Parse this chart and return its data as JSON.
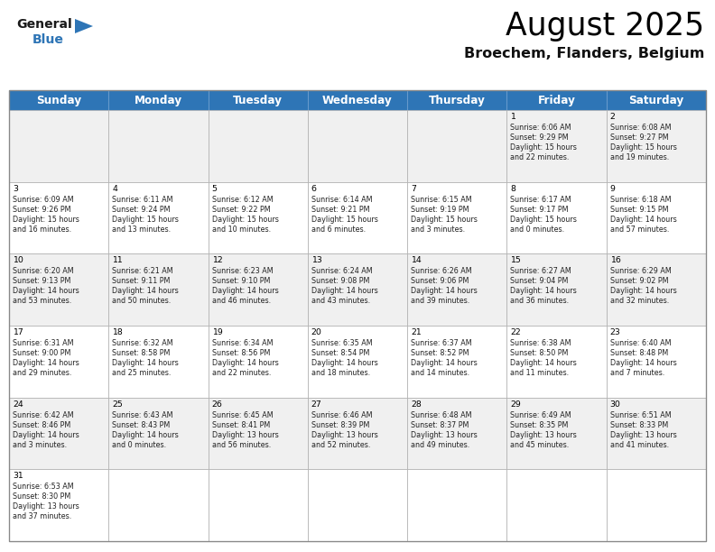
{
  "title": "August 2025",
  "subtitle": "Broechem, Flanders, Belgium",
  "header_color": "#2E75B6",
  "header_text_color": "#FFFFFF",
  "background_color": "#FFFFFF",
  "alt_row_color": "#F0F0F0",
  "border_color": "#AAAAAA",
  "day_headers": [
    "Sunday",
    "Monday",
    "Tuesday",
    "Wednesday",
    "Thursday",
    "Friday",
    "Saturday"
  ],
  "title_fontsize": 26,
  "subtitle_fontsize": 12,
  "header_fontsize": 9,
  "day_num_fontsize": 7,
  "cell_fontsize": 6,
  "days": [
    {
      "day": 1,
      "col": 5,
      "row": 0,
      "sunrise": "6:06 AM",
      "sunset": "9:29 PM",
      "daylight_h": "15 hours",
      "daylight_m": "and 22 minutes."
    },
    {
      "day": 2,
      "col": 6,
      "row": 0,
      "sunrise": "6:08 AM",
      "sunset": "9:27 PM",
      "daylight_h": "15 hours",
      "daylight_m": "and 19 minutes."
    },
    {
      "day": 3,
      "col": 0,
      "row": 1,
      "sunrise": "6:09 AM",
      "sunset": "9:26 PM",
      "daylight_h": "15 hours",
      "daylight_m": "and 16 minutes."
    },
    {
      "day": 4,
      "col": 1,
      "row": 1,
      "sunrise": "6:11 AM",
      "sunset": "9:24 PM",
      "daylight_h": "15 hours",
      "daylight_m": "and 13 minutes."
    },
    {
      "day": 5,
      "col": 2,
      "row": 1,
      "sunrise": "6:12 AM",
      "sunset": "9:22 PM",
      "daylight_h": "15 hours",
      "daylight_m": "and 10 minutes."
    },
    {
      "day": 6,
      "col": 3,
      "row": 1,
      "sunrise": "6:14 AM",
      "sunset": "9:21 PM",
      "daylight_h": "15 hours",
      "daylight_m": "and 6 minutes."
    },
    {
      "day": 7,
      "col": 4,
      "row": 1,
      "sunrise": "6:15 AM",
      "sunset": "9:19 PM",
      "daylight_h": "15 hours",
      "daylight_m": "and 3 minutes."
    },
    {
      "day": 8,
      "col": 5,
      "row": 1,
      "sunrise": "6:17 AM",
      "sunset": "9:17 PM",
      "daylight_h": "15 hours",
      "daylight_m": "and 0 minutes."
    },
    {
      "day": 9,
      "col": 6,
      "row": 1,
      "sunrise": "6:18 AM",
      "sunset": "9:15 PM",
      "daylight_h": "14 hours",
      "daylight_m": "and 57 minutes."
    },
    {
      "day": 10,
      "col": 0,
      "row": 2,
      "sunrise": "6:20 AM",
      "sunset": "9:13 PM",
      "daylight_h": "14 hours",
      "daylight_m": "and 53 minutes."
    },
    {
      "day": 11,
      "col": 1,
      "row": 2,
      "sunrise": "6:21 AM",
      "sunset": "9:11 PM",
      "daylight_h": "14 hours",
      "daylight_m": "and 50 minutes."
    },
    {
      "day": 12,
      "col": 2,
      "row": 2,
      "sunrise": "6:23 AM",
      "sunset": "9:10 PM",
      "daylight_h": "14 hours",
      "daylight_m": "and 46 minutes."
    },
    {
      "day": 13,
      "col": 3,
      "row": 2,
      "sunrise": "6:24 AM",
      "sunset": "9:08 PM",
      "daylight_h": "14 hours",
      "daylight_m": "and 43 minutes."
    },
    {
      "day": 14,
      "col": 4,
      "row": 2,
      "sunrise": "6:26 AM",
      "sunset": "9:06 PM",
      "daylight_h": "14 hours",
      "daylight_m": "and 39 minutes."
    },
    {
      "day": 15,
      "col": 5,
      "row": 2,
      "sunrise": "6:27 AM",
      "sunset": "9:04 PM",
      "daylight_h": "14 hours",
      "daylight_m": "and 36 minutes."
    },
    {
      "day": 16,
      "col": 6,
      "row": 2,
      "sunrise": "6:29 AM",
      "sunset": "9:02 PM",
      "daylight_h": "14 hours",
      "daylight_m": "and 32 minutes."
    },
    {
      "day": 17,
      "col": 0,
      "row": 3,
      "sunrise": "6:31 AM",
      "sunset": "9:00 PM",
      "daylight_h": "14 hours",
      "daylight_m": "and 29 minutes."
    },
    {
      "day": 18,
      "col": 1,
      "row": 3,
      "sunrise": "6:32 AM",
      "sunset": "8:58 PM",
      "daylight_h": "14 hours",
      "daylight_m": "and 25 minutes."
    },
    {
      "day": 19,
      "col": 2,
      "row": 3,
      "sunrise": "6:34 AM",
      "sunset": "8:56 PM",
      "daylight_h": "14 hours",
      "daylight_m": "and 22 minutes."
    },
    {
      "day": 20,
      "col": 3,
      "row": 3,
      "sunrise": "6:35 AM",
      "sunset": "8:54 PM",
      "daylight_h": "14 hours",
      "daylight_m": "and 18 minutes."
    },
    {
      "day": 21,
      "col": 4,
      "row": 3,
      "sunrise": "6:37 AM",
      "sunset": "8:52 PM",
      "daylight_h": "14 hours",
      "daylight_m": "and 14 minutes."
    },
    {
      "day": 22,
      "col": 5,
      "row": 3,
      "sunrise": "6:38 AM",
      "sunset": "8:50 PM",
      "daylight_h": "14 hours",
      "daylight_m": "and 11 minutes."
    },
    {
      "day": 23,
      "col": 6,
      "row": 3,
      "sunrise": "6:40 AM",
      "sunset": "8:48 PM",
      "daylight_h": "14 hours",
      "daylight_m": "and 7 minutes."
    },
    {
      "day": 24,
      "col": 0,
      "row": 4,
      "sunrise": "6:42 AM",
      "sunset": "8:46 PM",
      "daylight_h": "14 hours",
      "daylight_m": "and 3 minutes."
    },
    {
      "day": 25,
      "col": 1,
      "row": 4,
      "sunrise": "6:43 AM",
      "sunset": "8:43 PM",
      "daylight_h": "14 hours",
      "daylight_m": "and 0 minutes."
    },
    {
      "day": 26,
      "col": 2,
      "row": 4,
      "sunrise": "6:45 AM",
      "sunset": "8:41 PM",
      "daylight_h": "13 hours",
      "daylight_m": "and 56 minutes."
    },
    {
      "day": 27,
      "col": 3,
      "row": 4,
      "sunrise": "6:46 AM",
      "sunset": "8:39 PM",
      "daylight_h": "13 hours",
      "daylight_m": "and 52 minutes."
    },
    {
      "day": 28,
      "col": 4,
      "row": 4,
      "sunrise": "6:48 AM",
      "sunset": "8:37 PM",
      "daylight_h": "13 hours",
      "daylight_m": "and 49 minutes."
    },
    {
      "day": 29,
      "col": 5,
      "row": 4,
      "sunrise": "6:49 AM",
      "sunset": "8:35 PM",
      "daylight_h": "13 hours",
      "daylight_m": "and 45 minutes."
    },
    {
      "day": 30,
      "col": 6,
      "row": 4,
      "sunrise": "6:51 AM",
      "sunset": "8:33 PM",
      "daylight_h": "13 hours",
      "daylight_m": "and 41 minutes."
    },
    {
      "day": 31,
      "col": 0,
      "row": 5,
      "sunrise": "6:53 AM",
      "sunset": "8:30 PM",
      "daylight_h": "13 hours",
      "daylight_m": "and 37 minutes."
    }
  ]
}
